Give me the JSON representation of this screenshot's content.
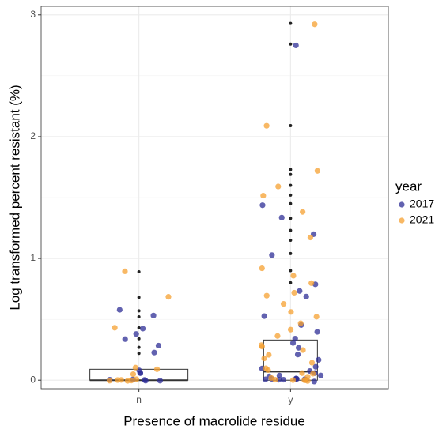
{
  "chart_data": {
    "type": "box-jitter",
    "x_label": "Presence of macrolide residue",
    "y_label": "Log transformed percent resistant (%)",
    "legend_title": "year",
    "categories": [
      "n",
      "y"
    ],
    "ylim": [
      -0.07,
      3.07
    ],
    "yticks": [
      0,
      1,
      2,
      3
    ],
    "minor_yticks": [
      0.5,
      1.5,
      2.5
    ],
    "grid": true,
    "boxes": [
      {
        "q1": 0,
        "median": 0,
        "q3": 0.09,
        "outliers": [
          0.89,
          0.68,
          0.57,
          0.52,
          0.43,
          0.34,
          0.27,
          0.22
        ]
      },
      {
        "q1": 0,
        "median": 0.07,
        "q3": 0.33,
        "outliers": [
          2.93,
          2.76,
          2.09,
          1.73,
          1.69,
          1.6,
          1.52,
          1.45,
          1.33,
          1.23,
          1.15,
          1.04,
          0.9,
          0.8
        ]
      }
    ],
    "series": [
      {
        "name": "2017",
        "color": "#2e2e96",
        "values": [
          [
            0.57,
            0.53,
            0.43,
            0.38,
            0.34,
            0.28,
            0.24,
            0.09,
            0.07,
            0.05,
            0,
            0,
            0,
            0,
            0
          ],
          [
            2.76,
            1.44,
            1.33,
            1.19,
            1.04,
            0.79,
            0.72,
            0.68,
            0.52,
            0.45,
            0.4,
            0.34,
            0.3,
            0.27,
            0.22,
            0.17,
            0.12,
            0.1,
            0.08,
            0.06,
            0.05,
            0.04,
            0.03,
            0.02,
            0.01,
            0,
            0,
            0,
            0,
            0,
            0,
            0,
            0
          ]
        ]
      },
      {
        "name": "2021",
        "color": "#f5a030",
        "values": [
          [
            0.89,
            0.69,
            0.43,
            0.1,
            0.09,
            0.04,
            0,
            0,
            0,
            0,
            0,
            0
          ],
          [
            2.93,
            2.09,
            1.73,
            1.6,
            1.51,
            1.39,
            1.18,
            0.91,
            0.87,
            0.79,
            0.72,
            0.7,
            0.63,
            0.57,
            0.51,
            0.47,
            0.41,
            0.36,
            0.3,
            0.28,
            0.24,
            0.21,
            0.17,
            0.14,
            0.1,
            0.08,
            0.06,
            0.05,
            0.03,
            0.02,
            0,
            0,
            0,
            0,
            0
          ]
        ]
      }
    ]
  }
}
